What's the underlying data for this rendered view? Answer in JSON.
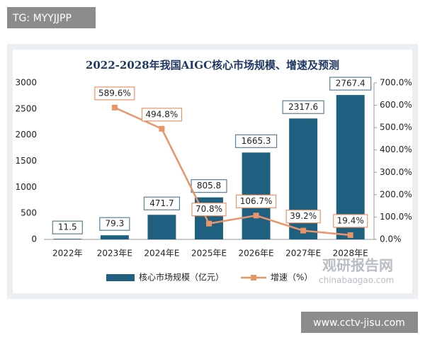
{
  "chart_data": {
    "type": "bar",
    "title": "2022-2028年我国AIGC核心市场规模、增速及预测",
    "categories": [
      "2022年",
      "2023年E",
      "2024年E",
      "2025年E",
      "2026年E",
      "2027年E",
      "2028年E"
    ],
    "series": [
      {
        "name": "核心市场规模（亿元）",
        "color": "#1f5f80",
        "values": [
          11.5,
          79.3,
          471.7,
          805.8,
          1665.3,
          2317.6,
          2767.4
        ]
      },
      {
        "name": "增速（%）",
        "color": "#e8956a",
        "axis": "y2",
        "values": [
          null,
          589.6,
          494.8,
          70.8,
          106.7,
          39.2,
          19.4
        ],
        "value_labels": [
          null,
          "589.6%",
          "494.8%",
          "70.8%",
          "106.7%",
          "39.2%",
          "19.4%"
        ]
      }
    ],
    "ylim": [
      0,
      3000
    ],
    "yticks": [
      0,
      500,
      1000,
      1500,
      2000,
      2500,
      3000
    ],
    "y2lim": [
      0,
      700
    ],
    "y2ticks": [
      {
        "value": 0,
        "label": "0.0%"
      },
      {
        "value": 100,
        "label": "100.0%"
      },
      {
        "value": 200,
        "label": "200.0%"
      },
      {
        "value": 300,
        "label": "300.0%"
      },
      {
        "value": 400,
        "label": "400.0%"
      },
      {
        "value": 500,
        "label": "500.0%"
      },
      {
        "value": 600,
        "label": "600.0%"
      },
      {
        "value": 700,
        "label": "700.0%"
      }
    ],
    "legend": "bottom"
  },
  "watermarks": {
    "top_left": "TG: MYYJJPP",
    "bottom_right": "www.cctv-jisu.com",
    "logo": "观研报告网",
    "logo_url": "chinabaogao.com"
  }
}
